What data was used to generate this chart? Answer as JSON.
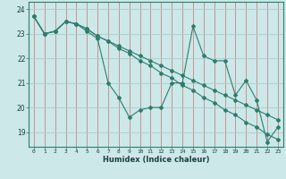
{
  "xlabel": "Humidex (Indice chaleur)",
  "background_color": "#cce8e8",
  "line_color": "#2e7d6e",
  "red_vline_color": "#c87070",
  "white_hline_color": "#b8d8d8",
  "xlim": [
    -0.5,
    23.5
  ],
  "ylim": [
    18.4,
    24.3
  ],
  "xticks": [
    0,
    1,
    2,
    3,
    4,
    5,
    6,
    7,
    8,
    9,
    10,
    11,
    12,
    13,
    14,
    15,
    16,
    17,
    18,
    19,
    20,
    21,
    22,
    23
  ],
  "yticks": [
    19,
    20,
    21,
    22,
    23,
    24
  ],
  "series": [
    [
      23.7,
      23.0,
      23.1,
      23.5,
      23.4,
      23.1,
      22.8,
      21.0,
      20.4,
      19.6,
      19.9,
      20.0,
      20.0,
      21.0,
      21.0,
      23.3,
      22.1,
      21.9,
      21.9,
      20.5,
      21.1,
      20.3,
      18.6,
      19.2
    ],
    [
      23.7,
      23.0,
      23.1,
      23.5,
      23.4,
      23.2,
      22.9,
      22.7,
      22.5,
      22.3,
      22.1,
      21.9,
      21.7,
      21.5,
      21.3,
      21.1,
      20.9,
      20.7,
      20.5,
      20.3,
      20.1,
      19.9,
      19.7,
      19.5
    ],
    [
      23.7,
      23.0,
      23.1,
      23.5,
      23.4,
      23.2,
      22.9,
      22.7,
      22.4,
      22.2,
      21.9,
      21.7,
      21.4,
      21.2,
      20.9,
      20.7,
      20.4,
      20.2,
      19.9,
      19.7,
      19.4,
      19.2,
      18.9,
      18.7
    ]
  ]
}
